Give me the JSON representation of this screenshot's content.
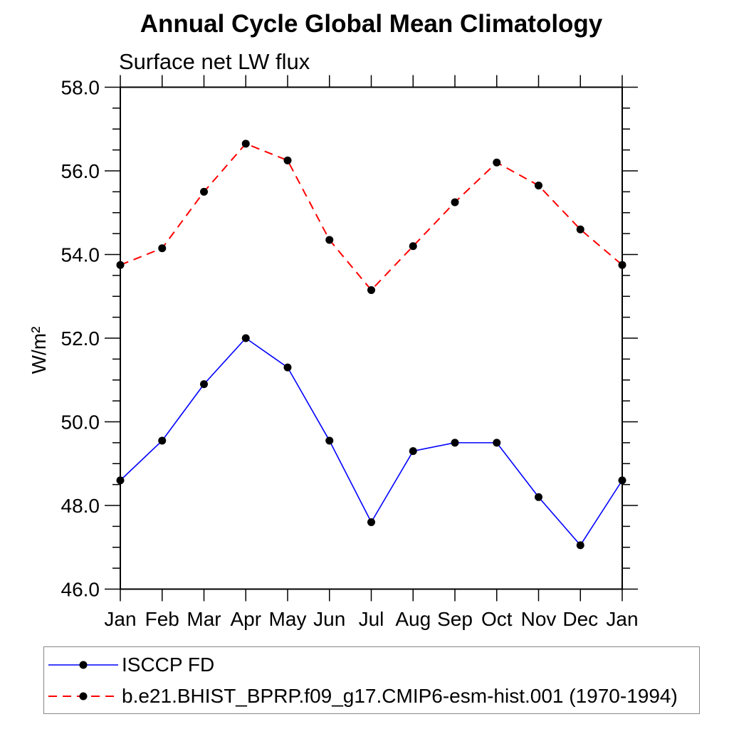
{
  "header": {
    "title": "Annual Cycle Global Mean Climatology",
    "subtitle": "Surface net LW flux"
  },
  "axis": {
    "ylabel": "W/m²"
  },
  "chart_data": {
    "type": "line",
    "title": "Annual Cycle Global Mean Climatology",
    "subtitle": "Surface net LW flux",
    "xlabel": "",
    "ylabel": "W/m²",
    "categories": [
      "Jan",
      "Feb",
      "Mar",
      "Apr",
      "May",
      "Jun",
      "Jul",
      "Aug",
      "Sep",
      "Oct",
      "Nov",
      "Dec",
      "Jan"
    ],
    "ylim": [
      46.0,
      58.0
    ],
    "ytick_interval": 2.0,
    "ytick_minor_interval": 0.5,
    "ytick_labels": [
      "46.0",
      "48.0",
      "50.0",
      "52.0",
      "54.0",
      "56.0",
      "58.0"
    ],
    "grid": false,
    "legend_position": "bottom-left-box",
    "series": [
      {
        "name": "ISCCP FD",
        "color": "#0000ff",
        "line_style": "solid",
        "marker": "filled-circle",
        "marker_color": "#000000",
        "values": [
          48.6,
          49.55,
          50.9,
          52.0,
          51.3,
          49.55,
          47.6,
          49.3,
          49.5,
          49.5,
          48.2,
          47.05,
          48.6
        ]
      },
      {
        "name": "b.e21.BHIST_BPRP.f09_g17.CMIP6-esm-hist.001 (1970-1994)",
        "color": "#ff0000",
        "line_style": "dashed",
        "marker": "filled-circle",
        "marker_color": "#000000",
        "values": [
          53.75,
          54.15,
          55.5,
          56.65,
          56.25,
          54.35,
          53.15,
          54.2,
          55.25,
          56.2,
          55.65,
          54.6,
          53.75
        ]
      }
    ]
  }
}
